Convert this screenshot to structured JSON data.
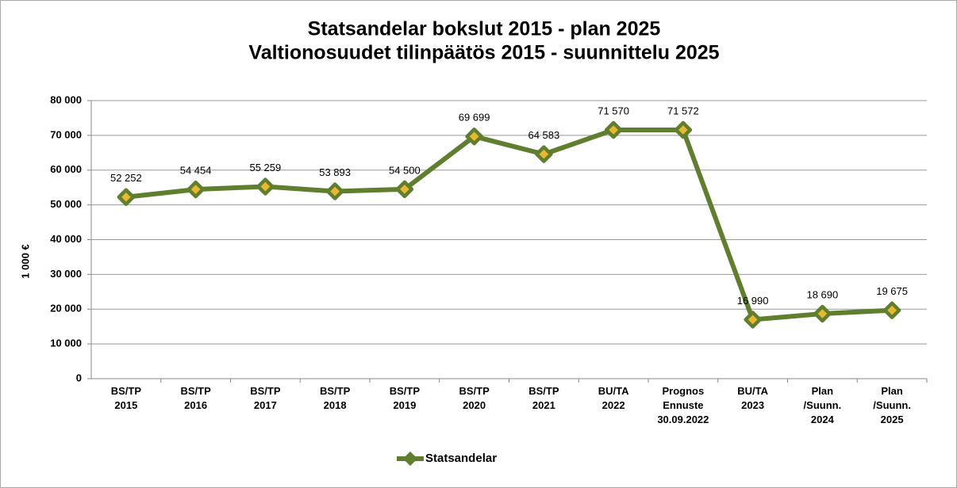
{
  "chart_data": {
    "type": "line",
    "title": [
      "Statsandelar  bokslut  2015 - plan 2025",
      "Valtionosuudet  tilinpäätös  2015 - suunnittelu 2025"
    ],
    "y_axis_label": "1 000 €",
    "categories": [
      "BS/TP\n2015",
      "BS/TP\n2016",
      "BS/TP\n2017",
      "BS/TP\n2018",
      "BS/TP\n2019",
      "BS/TP\n2020",
      "BS/TP\n2021",
      "BU/TA\n2022",
      "Prognos\nEnnuste\n30.09.2022",
      "BU/TA\n2023",
      "Plan\n/Suunn.\n2024",
      "Plan\n/Suunn.\n2025"
    ],
    "series": [
      {
        "name": "Statsandelar",
        "color": "#5f7f2e",
        "marker_color": "#e8b830",
        "values": [
          52252,
          54454,
          55259,
          53893,
          54500,
          69699,
          64583,
          71570,
          71572,
          16990,
          18690,
          19675
        ],
        "value_labels": [
          "52 252",
          "54 454",
          "55 259",
          "53 893",
          "54 500",
          "69 699",
          "64 583",
          "71 570",
          "71 572",
          "16 990",
          "18 690",
          "19 675"
        ]
      }
    ],
    "ylim": [
      0,
      80000
    ],
    "yticks": [
      {
        "value": 0,
        "label": "0"
      },
      {
        "value": 10000,
        "label": "10 000"
      },
      {
        "value": 20000,
        "label": "20 000"
      },
      {
        "value": 30000,
        "label": "30 000"
      },
      {
        "value": 40000,
        "label": "40 000"
      },
      {
        "value": 50000,
        "label": "50 000"
      },
      {
        "value": 60000,
        "label": "60 000"
      },
      {
        "value": 70000,
        "label": "70 000"
      },
      {
        "value": 80000,
        "label": "80 000"
      }
    ],
    "grid": true,
    "legend": "bottom"
  }
}
